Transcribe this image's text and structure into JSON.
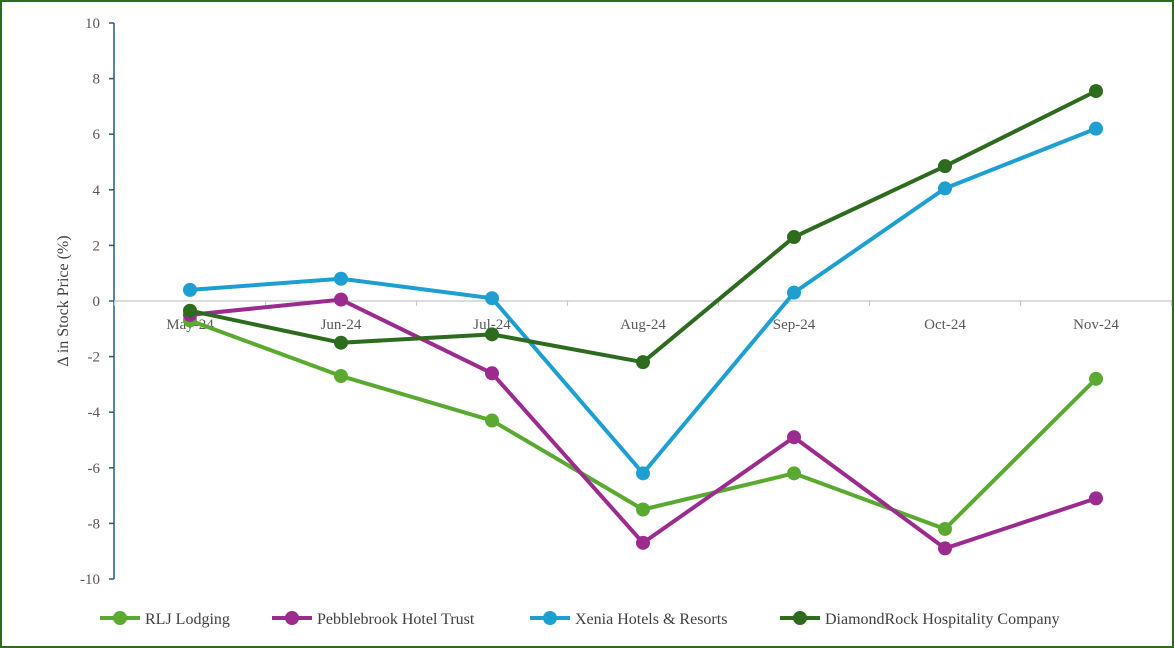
{
  "chart_data": {
    "type": "line",
    "title": "",
    "xlabel": "",
    "ylabel": "Δ in Stock Price (%)",
    "categories": [
      "May-24",
      "Jun-24",
      "Jul-24",
      "Aug-24",
      "Sep-24",
      "Oct-24",
      "Nov-24"
    ],
    "ylim": [
      -10,
      10
    ],
    "yticks": [
      10,
      8,
      6,
      4,
      2,
      0,
      -2,
      -4,
      -6,
      -8,
      -10
    ],
    "grid": false,
    "legend_position": "bottom",
    "series": [
      {
        "name": "RLJ Lodging",
        "color": "#5aaa32",
        "values": [
          -0.7,
          -2.7,
          -4.3,
          -7.5,
          -6.2,
          -8.2,
          -2.8
        ]
      },
      {
        "name": "Pebblebrook Hotel Trust",
        "color": "#9c2b8f",
        "values": [
          -0.5,
          0.05,
          -2.6,
          -8.7,
          -4.9,
          -8.9,
          -7.1
        ]
      },
      {
        "name": "Xenia Hotels & Resorts",
        "color": "#1e9fd2",
        "values": [
          0.4,
          0.8,
          0.1,
          -6.2,
          0.3,
          4.05,
          6.2
        ]
      },
      {
        "name": "DiamondRock Hospitality Company",
        "color": "#2d6b1e",
        "values": [
          -0.35,
          -1.5,
          -1.2,
          -2.2,
          2.3,
          4.85,
          7.55
        ]
      }
    ]
  }
}
